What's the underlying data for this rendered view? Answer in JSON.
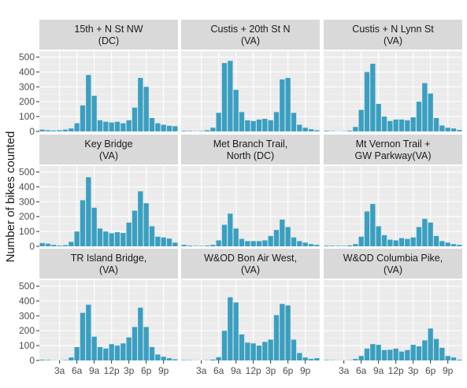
{
  "chart_data": {
    "type": "bar",
    "ylabel": "Number of bikes counted",
    "xlabel": "",
    "ylim": [
      0,
      540
    ],
    "yticks": [
      0,
      100,
      200,
      300,
      400,
      500
    ],
    "xticks": [
      {
        "hour": 3,
        "label": "3a"
      },
      {
        "hour": 6,
        "label": "6a"
      },
      {
        "hour": 9,
        "label": "9a"
      },
      {
        "hour": 12,
        "label": "12p"
      },
      {
        "hour": 15,
        "label": "3p"
      },
      {
        "hour": 18,
        "label": "6p"
      },
      {
        "hour": 21,
        "label": "9p"
      }
    ],
    "hours": [
      0,
      1,
      2,
      3,
      4,
      5,
      6,
      7,
      8,
      9,
      10,
      11,
      12,
      13,
      14,
      15,
      16,
      17,
      18,
      19,
      20,
      21,
      22,
      23
    ],
    "bar_color": "#3a9fc0",
    "panel_bg": "#ebebeb",
    "strip_bg": "#d9d9d9",
    "grid": true,
    "panels": [
      {
        "title_line1": "15th + N St NW",
        "title_line2": "(DC)",
        "values": [
          12,
          8,
          6,
          8,
          12,
          20,
          55,
          175,
          380,
          240,
          75,
          65,
          60,
          65,
          55,
          75,
          160,
          360,
          300,
          90,
          55,
          45,
          38,
          35
        ]
      },
      {
        "title_line1": "Custis + 20th St N",
        "title_line2": "(VA)",
        "values": [
          4,
          3,
          2,
          3,
          8,
          25,
          125,
          460,
          475,
          280,
          130,
          75,
          70,
          80,
          85,
          75,
          130,
          350,
          360,
          125,
          45,
          25,
          15,
          8
        ]
      },
      {
        "title_line1": "Custis + N Lynn St",
        "title_line2": "(VA)",
        "values": [
          4,
          2,
          1,
          2,
          5,
          30,
          145,
          400,
          455,
          185,
          100,
          70,
          80,
          80,
          75,
          95,
          200,
          325,
          255,
          90,
          40,
          25,
          20,
          10
        ]
      },
      {
        "title_line1": "Key Bridge",
        "title_line2": "(VA)",
        "values": [
          22,
          18,
          10,
          5,
          8,
          30,
          100,
          310,
          465,
          260,
          120,
          100,
          88,
          95,
          90,
          160,
          240,
          370,
          290,
          135,
          65,
          60,
          52,
          25
        ]
      },
      {
        "title_line1": "Met Branch Trail,",
        "title_line2": "North (DC)",
        "values": [
          10,
          5,
          3,
          3,
          5,
          10,
          40,
          145,
          220,
          120,
          50,
          35,
          35,
          35,
          40,
          70,
          110,
          180,
          130,
          60,
          35,
          25,
          15,
          10
        ]
      },
      {
        "title_line1": "Mt Vernon Trail +",
        "title_line2": "GW Parkway(VA)",
        "values": [
          5,
          4,
          3,
          3,
          6,
          15,
          65,
          235,
          285,
          135,
          75,
          45,
          40,
          55,
          50,
          60,
          130,
          185,
          160,
          70,
          35,
          25,
          15,
          10
        ]
      },
      {
        "title_line1": "TR Island Bridge,",
        "title_line2": "(VA)",
        "values": [
          5,
          3,
          1,
          1,
          3,
          20,
          90,
          320,
          375,
          160,
          90,
          80,
          110,
          100,
          115,
          155,
          225,
          355,
          225,
          90,
          40,
          25,
          15,
          8
        ]
      },
      {
        "title_line1": "W&OD Bon Air West,",
        "title_line2": "(VA)",
        "values": [
          3,
          2,
          1,
          1,
          2,
          6,
          22,
          200,
          425,
          390,
          175,
          120,
          115,
          100,
          125,
          140,
          305,
          380,
          370,
          140,
          50,
          20,
          10,
          15
        ]
      },
      {
        "title_line1": "W&OD Columbia Pike,",
        "title_line2": "(VA)",
        "values": [
          3,
          2,
          1,
          1,
          2,
          10,
          30,
          80,
          110,
          105,
          70,
          72,
          80,
          60,
          70,
          105,
          95,
          135,
          215,
          145,
          85,
          30,
          20,
          5
        ]
      }
    ]
  }
}
